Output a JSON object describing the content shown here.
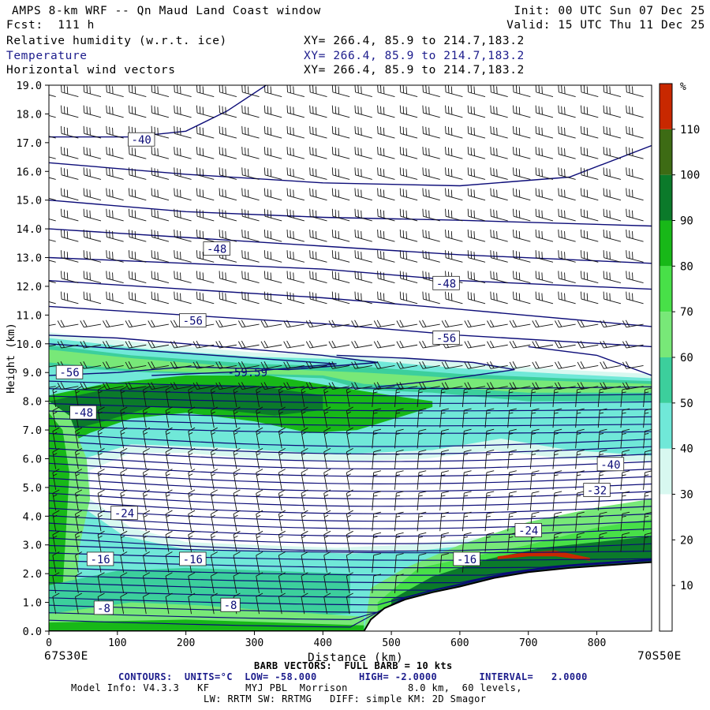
{
  "header": {
    "title": "AMPS 8-km WRF -- Qn Maud Land Coast window",
    "fcst": "Fcst:  111 h",
    "init": "Init: 00 UTC Sun 07 Dec 25",
    "valid": "Valid: 15 UTC Thu 11 Dec 25",
    "fields": [
      {
        "name": "Relative humidity (w.r.t. ice)",
        "xy": "XY= 266.4, 85.9 to 214.7,183.2",
        "color": "#000000"
      },
      {
        "name": "Temperature",
        "xy": "XY= 266.4, 85.9 to 214.7,183.2",
        "color": "#1c1c8c"
      },
      {
        "name": "Horizontal wind vectors",
        "xy": "XY= 266.4, 85.9 to 214.7,183.2",
        "color": "#000000"
      }
    ]
  },
  "footer": {
    "left_coord": "67S30E",
    "right_coord": "70S50E",
    "barb": "BARB VECTORS:  FULL BARB = 10 kts",
    "contours": "CONTOURS:  UNITS=°C  LOW= -58.000       HIGH= -2.0000       INTERVAL=   2.0000",
    "model_info": "Model Info: V4.3.3   KF      MYJ PBL  Morrison          8.0 km,  60 levels,",
    "physics": "LW: RRTM SW: RRTMG   DIFF: simple KM: 2D Smagor"
  },
  "chart_data": {
    "type": "heatmap",
    "xlabel": "Distance (km)",
    "ylabel": "Height (km)",
    "xlim": [
      0,
      880
    ],
    "ylim": [
      0,
      19
    ],
    "x_ticks": [
      0,
      100,
      200,
      300,
      400,
      500,
      600,
      700,
      800
    ],
    "y_ticks": [
      "0.0",
      "1.0",
      "2.0",
      "3.0",
      "4.0",
      "5.0",
      "6.0",
      "7.0",
      "8.0",
      "9.0",
      "10.0",
      "11.0",
      "12.0",
      "13.0",
      "14.0",
      "15.0",
      "16.0",
      "17.0",
      "18.0",
      "19.0"
    ],
    "colorbar": {
      "unit": "%",
      "tick_labels": [
        "10",
        "20",
        "30",
        "40",
        "50",
        "60",
        "70",
        "80",
        "90",
        "100",
        "110"
      ],
      "levels": [
        0,
        10,
        20,
        30,
        40,
        50,
        60,
        70,
        80,
        90,
        100,
        110,
        120
      ],
      "colors": [
        "#ffffff",
        "#ffffff",
        "#ffffff",
        "#d8f8f0",
        "#70e8d8",
        "#3ccf9c",
        "#78e878",
        "#48e048",
        "#18b818",
        "#0b7a2a",
        "#3d6b14",
        "#c82800"
      ]
    },
    "temperature_contours": {
      "units": "°C",
      "low": -58,
      "high": -2,
      "interval": 2,
      "labels": [
        {
          "text": "-40",
          "x": 135,
          "y": 17.1
        },
        {
          "text": "-48",
          "x": 245,
          "y": 13.3
        },
        {
          "text": "-48",
          "x": 580,
          "y": 12.1
        },
        {
          "text": "-56",
          "x": 210,
          "y": 10.8
        },
        {
          "text": "-56",
          "x": 580,
          "y": 10.2
        },
        {
          "text": "-56",
          "x": 30,
          "y": 9.0
        },
        {
          "text": "-59.59",
          "x": 290,
          "y": 9.0
        },
        {
          "text": "-48",
          "x": 50,
          "y": 7.6
        },
        {
          "text": "-40",
          "x": 820,
          "y": 5.8
        },
        {
          "text": "-32",
          "x": 800,
          "y": 4.9
        },
        {
          "text": "-24",
          "x": 110,
          "y": 4.1
        },
        {
          "text": "-24",
          "x": 700,
          "y": 3.5
        },
        {
          "text": "-16",
          "x": 75,
          "y": 2.5
        },
        {
          "text": "-16",
          "x": 210,
          "y": 2.5
        },
        {
          "text": "-16",
          "x": 610,
          "y": 2.5
        },
        {
          "text": "-8",
          "x": 80,
          "y": 0.8
        },
        {
          "text": "-8",
          "x": 265,
          "y": 0.9
        }
      ]
    },
    "terrain_km": [
      [
        0,
        0
      ],
      [
        460,
        0
      ],
      [
        470,
        0.4
      ],
      [
        490,
        0.8
      ],
      [
        520,
        1.1
      ],
      [
        560,
        1.35
      ],
      [
        600,
        1.55
      ],
      [
        650,
        1.85
      ],
      [
        700,
        2.05
      ],
      [
        760,
        2.2
      ],
      [
        820,
        2.3
      ],
      [
        880,
        2.4
      ]
    ],
    "high_rh_band_red": [
      [
        655,
        2.6
      ],
      [
        700,
        2.75
      ],
      [
        740,
        2.8
      ],
      [
        790,
        2.55
      ]
    ]
  }
}
